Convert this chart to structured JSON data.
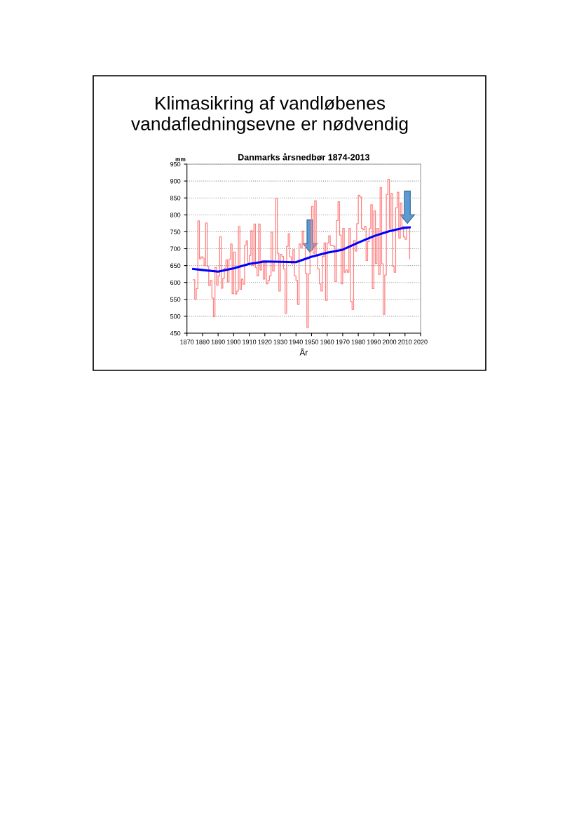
{
  "chart_data": {
    "type": "step",
    "title": "Klimasikring af vandløbenes\nvandafledningsevne er nødvendig",
    "subtitle": "Danmarks årsnedbør 1874-2013",
    "xlabel": "År",
    "ylabel": "mm",
    "x": [
      1874,
      1875,
      1876,
      1877,
      1878,
      1879,
      1880,
      1881,
      1882,
      1883,
      1884,
      1885,
      1886,
      1887,
      1888,
      1889,
      1890,
      1891,
      1892,
      1893,
      1894,
      1895,
      1896,
      1897,
      1898,
      1899,
      1900,
      1901,
      1902,
      1903,
      1904,
      1905,
      1906,
      1907,
      1908,
      1909,
      1910,
      1911,
      1912,
      1913,
      1914,
      1915,
      1916,
      1917,
      1918,
      1919,
      1920,
      1921,
      1922,
      1923,
      1924,
      1925,
      1926,
      1927,
      1928,
      1929,
      1930,
      1931,
      1932,
      1933,
      1934,
      1935,
      1936,
      1937,
      1938,
      1939,
      1940,
      1941,
      1942,
      1943,
      1944,
      1945,
      1946,
      1947,
      1948,
      1949,
      1950,
      1951,
      1952,
      1953,
      1954,
      1955,
      1956,
      1957,
      1958,
      1959,
      1960,
      1961,
      1962,
      1963,
      1964,
      1965,
      1966,
      1967,
      1968,
      1969,
      1970,
      1971,
      1972,
      1973,
      1974,
      1975,
      1976,
      1977,
      1978,
      1979,
      1980,
      1981,
      1982,
      1983,
      1984,
      1985,
      1986,
      1987,
      1988,
      1989,
      1990,
      1991,
      1992,
      1993,
      1994,
      1995,
      1996,
      1997,
      1998,
      1999,
      2000,
      2001,
      2002,
      2003,
      2004,
      2005,
      2006,
      2007,
      2008,
      2009,
      2010,
      2011,
      2012,
      2013
    ],
    "series": [
      {
        "color": "#ff8080",
        "values": [
          608,
          550,
          582,
          782,
          670,
          676,
          672,
          650,
          776,
          647,
          591,
          606,
          554,
          499,
          644,
          592,
          620,
          735,
          583,
          612,
          642,
          667,
          601,
          669,
          714,
          567,
          690,
          566,
          575,
          765,
          580,
          610,
          595,
          710,
          723,
          660,
          680,
          753,
          650,
          773,
          644,
          620,
          773,
          637,
          665,
          610,
          658,
          596,
          606,
          620,
          749,
          634,
          662,
          849,
          686,
          575,
          683,
          677,
          640,
          509,
          707,
          744,
          676,
          655,
          697,
          620,
          606,
          535,
          714,
          703,
          752,
          714,
          627,
          467,
          625,
          693,
          825,
          686,
          842,
          679,
          640,
          596,
          575,
          677,
          717,
          547,
          717,
          738,
          710,
          709,
          707,
          603,
          783,
          839,
          740,
          596,
          760,
          630,
          637,
          630,
          760,
          544,
          520,
          724,
          693,
          774,
          858,
          853,
          760,
          756,
          766,
          665,
          721,
          760,
          830,
          582,
          812,
          656,
          760,
          624,
          881,
          655,
          506,
          622,
          860,
          905,
          760,
          863,
          648,
          630,
          821,
          867,
          731,
          835,
          766,
          735,
          728,
          762,
          762,
          670
        ]
      },
      {
        "type": "line",
        "color": "#0000ff",
        "x": [
          1874,
          1880,
          1890,
          1900,
          1910,
          1920,
          1930,
          1940,
          1950,
          1960,
          1970,
          1980,
          1990,
          2000,
          2010,
          2013
        ],
        "values": [
          640,
          637,
          632,
          642,
          655,
          662,
          661,
          660,
          676,
          688,
          697,
          718,
          737,
          752,
          762,
          763
        ]
      }
    ],
    "xlim": [
      1870,
      2020
    ],
    "ylim": [
      450,
      950
    ],
    "xticks": [
      1870,
      1880,
      1890,
      1900,
      1910,
      1920,
      1930,
      1940,
      1950,
      1960,
      1970,
      1980,
      1990,
      2000,
      2010,
      2020
    ],
    "yticks": [
      450,
      500,
      550,
      600,
      650,
      700,
      750,
      800,
      850,
      900,
      950
    ],
    "grid": "y",
    "marker": "none",
    "line_style": "solid",
    "legend": false
  }
}
